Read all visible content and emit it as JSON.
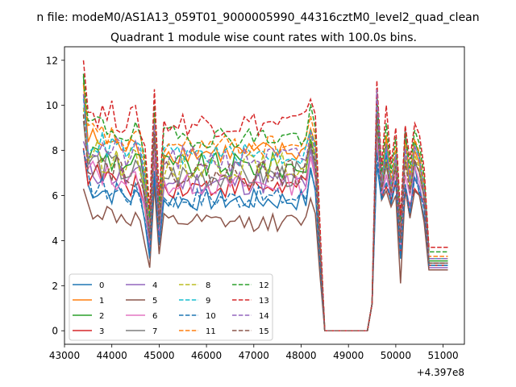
{
  "suptitle": "n file: modeM0/AS1A13_059T01_9000005990_44316cztM0_level2_quad_clean",
  "chart_data": {
    "type": "line",
    "title": "Quadrant 1 module wise count rates with 100.0s bins.",
    "xlabel": "",
    "ylabel": "",
    "x_offset_label": "+4.397e8",
    "xlim": [
      43000,
      51450
    ],
    "ylim": [
      -0.6,
      12.6
    ],
    "x_ticks": [
      43000,
      44000,
      45000,
      46000,
      47000,
      48000,
      49000,
      50000,
      51000
    ],
    "x_tick_labels": [
      "43000",
      "44000",
      "45000",
      "46000",
      "47000",
      "48000",
      "49000",
      "50000",
      "51000"
    ],
    "y_ticks": [
      0,
      2,
      4,
      6,
      8,
      10,
      12
    ],
    "y_tick_labels": [
      "0",
      "2",
      "4",
      "6",
      "8",
      "10",
      "12"
    ],
    "grid": false,
    "legend_position": "lower-left",
    "legend_columns": 4,
    "x_samples": {
      "start": 43400,
      "step": 100,
      "count": 78
    },
    "series": [
      {
        "name": "0",
        "color": "#1f77b4",
        "dash": "solid",
        "level": 5.8,
        "first": 8.1,
        "spread": 0.5,
        "dip": 3.2,
        "after": [
          7.4,
          5.8,
          7.9,
          5.6,
          6.6,
          3.2,
          6.3,
          5.0,
          7.4,
          6.0,
          5.0,
          3.0
        ]
      },
      {
        "name": "1",
        "color": "#ff7f0e",
        "dash": "solid",
        "level": 7.9,
        "first": 11.0,
        "spread": 0.5,
        "dip": 4.6,
        "after": [
          9.8,
          6.5,
          8.6,
          6.4,
          7.8,
          4.4,
          7.7,
          6.5,
          8.0,
          7.4,
          6.2,
          3.0
        ]
      },
      {
        "name": "2",
        "color": "#2ca02c",
        "dash": "solid",
        "level": 7.3,
        "first": 11.3,
        "spread": 0.6,
        "dip": 4.3,
        "after": [
          10.2,
          6.2,
          8.3,
          6.2,
          7.5,
          4.2,
          8.7,
          6.6,
          8.4,
          7.8,
          5.8,
          3.1
        ]
      },
      {
        "name": "3",
        "color": "#d62728",
        "dash": "solid",
        "level": 6.4,
        "first": 8.1,
        "spread": 0.5,
        "dip": 3.7,
        "after": [
          8.9,
          5.9,
          6.4,
          5.8,
          6.6,
          3.4,
          6.1,
          5.6,
          6.3,
          6.0,
          5.8,
          2.9
        ]
      },
      {
        "name": "4",
        "color": "#9467bd",
        "dash": "solid",
        "level": 6.6,
        "first": 8.4,
        "spread": 0.6,
        "dip": 3.5,
        "after": [
          8.3,
          6.0,
          6.9,
          6.0,
          7.0,
          3.6,
          6.5,
          5.4,
          6.8,
          6.4,
          5.5,
          2.8
        ]
      },
      {
        "name": "5",
        "color": "#8c564b",
        "dash": "solid",
        "level": 4.8,
        "first": 6.3,
        "spread": 0.4,
        "dip": 2.8,
        "after": [
          9.5,
          5.8,
          6.2,
          5.5,
          6.0,
          2.1,
          6.3,
          5.0,
          6.2,
          6.0,
          4.8,
          2.7
        ]
      },
      {
        "name": "6",
        "color": "#e377c2",
        "dash": "solid",
        "level": 6.5,
        "first": 8.0,
        "spread": 0.5,
        "dip": 3.9,
        "after": [
          8.8,
          6.1,
          6.9,
          6.1,
          7.0,
          3.8,
          6.9,
          6.0,
          7.3,
          6.6,
          6.0,
          3.0
        ]
      },
      {
        "name": "7",
        "color": "#7f7f7f",
        "dash": "solid",
        "level": 6.9,
        "first": 9.3,
        "spread": 0.6,
        "dip": 4.0,
        "after": [
          9.3,
          6.3,
          7.3,
          6.2,
          7.4,
          3.9,
          9.0,
          6.2,
          7.5,
          7.0,
          5.9,
          3.0
        ]
      },
      {
        "name": "8",
        "color": "#bcbd22",
        "dash": "dashed",
        "level": 7.3,
        "first": 9.9,
        "spread": 0.6,
        "dip": 4.3,
        "after": [
          9.5,
          6.4,
          7.6,
          6.3,
          7.5,
          4.0,
          7.6,
          6.4,
          7.8,
          7.2,
          6.1,
          3.2
        ]
      },
      {
        "name": "9",
        "color": "#17becf",
        "dash": "dashed",
        "level": 7.8,
        "first": 10.3,
        "spread": 0.5,
        "dip": 4.5,
        "after": [
          9.9,
          6.6,
          8.1,
          6.5,
          7.9,
          4.3,
          8.0,
          6.7,
          8.2,
          7.6,
          6.3,
          3.2
        ]
      },
      {
        "name": "10",
        "color": "#1f77b4",
        "dash": "dashed",
        "level": 5.9,
        "first": 8.0,
        "spread": 0.5,
        "dip": 3.3,
        "after": [
          7.9,
          5.8,
          6.6,
          5.7,
          6.7,
          3.3,
          6.5,
          5.2,
          6.8,
          6.2,
          5.4,
          2.9
        ]
      },
      {
        "name": "11",
        "color": "#ff7f0e",
        "dash": "dashed",
        "level": 8.2,
        "first": 10.9,
        "spread": 0.5,
        "dip": 4.7,
        "after": [
          10.4,
          6.8,
          8.7,
          6.7,
          8.2,
          4.6,
          8.4,
          6.9,
          8.5,
          7.9,
          6.5,
          3.3
        ]
      },
      {
        "name": "12",
        "color": "#2ca02c",
        "dash": "dashed",
        "level": 8.6,
        "first": 11.4,
        "spread": 0.5,
        "dip": 5.0,
        "after": [
          10.6,
          7.0,
          9.2,
          7.0,
          8.6,
          4.8,
          8.8,
          7.2,
          8.9,
          8.3,
          6.8,
          3.5
        ]
      },
      {
        "name": "13",
        "color": "#d62728",
        "dash": "dashed",
        "level": 9.2,
        "first": 12.0,
        "spread": 0.6,
        "dip": 5.4,
        "after": [
          11.1,
          7.3,
          10.0,
          7.4,
          9.0,
          5.1,
          9.1,
          7.6,
          9.2,
          8.7,
          7.2,
          3.7
        ]
      },
      {
        "name": "14",
        "color": "#9467bd",
        "dash": "dashed",
        "level": 7.6,
        "first": 10.5,
        "spread": 0.6,
        "dip": 4.4,
        "after": [
          10.7,
          6.5,
          8.3,
          6.4,
          7.8,
          4.2,
          8.1,
          6.6,
          8.2,
          7.6,
          6.2,
          3.2
        ]
      },
      {
        "name": "15",
        "color": "#8c564b",
        "dash": "dashed",
        "level": 7.0,
        "first": 9.6,
        "spread": 0.6,
        "dip": 4.1,
        "after": [
          9.6,
          6.2,
          7.5,
          6.1,
          7.3,
          4.0,
          7.5,
          6.1,
          7.6,
          7.0,
          5.9,
          3.0
        ]
      }
    ]
  }
}
